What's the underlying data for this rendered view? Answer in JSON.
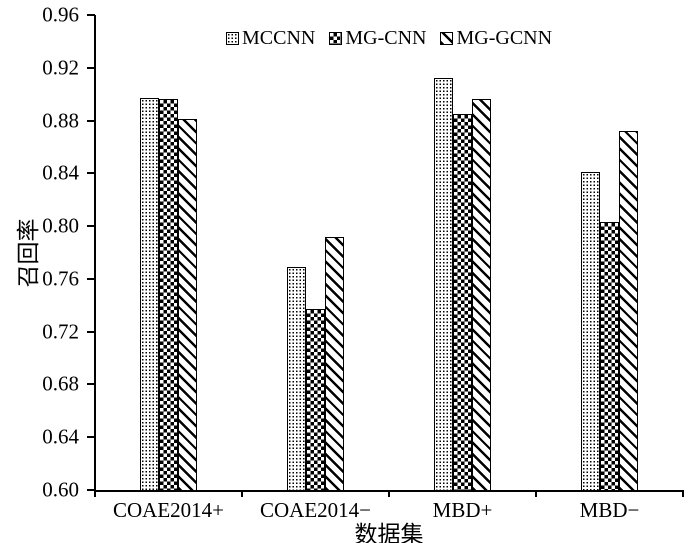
{
  "chart_data": {
    "type": "bar",
    "title": "",
    "xlabel": "数据集",
    "ylabel": "召回率",
    "categories": [
      "COAE2014+",
      "COAE2014−",
      "MBD+",
      "MBD−"
    ],
    "series": [
      {
        "name": "MCCNN",
        "pattern": "dots",
        "values": [
          0.897,
          0.769,
          0.912,
          0.841
        ]
      },
      {
        "name": "MG-CNN",
        "pattern": "checker",
        "values": [
          0.896,
          0.737,
          0.885,
          0.803
        ]
      },
      {
        "name": "MG-GCNN",
        "pattern": "diag",
        "values": [
          0.881,
          0.792,
          0.896,
          0.872
        ]
      }
    ],
    "ylim": [
      0.6,
      0.96
    ],
    "ytick_step": 0.04,
    "ytick_labels": [
      "0.60",
      "0.64",
      "0.68",
      "0.72",
      "0.76",
      "0.80",
      "0.84",
      "0.88",
      "0.92",
      "0.96"
    ],
    "legend_position": "top-center-inside",
    "grid": false,
    "bar_outline_color": "#000000",
    "pattern_color": "#000000",
    "background": "#ffffff"
  }
}
